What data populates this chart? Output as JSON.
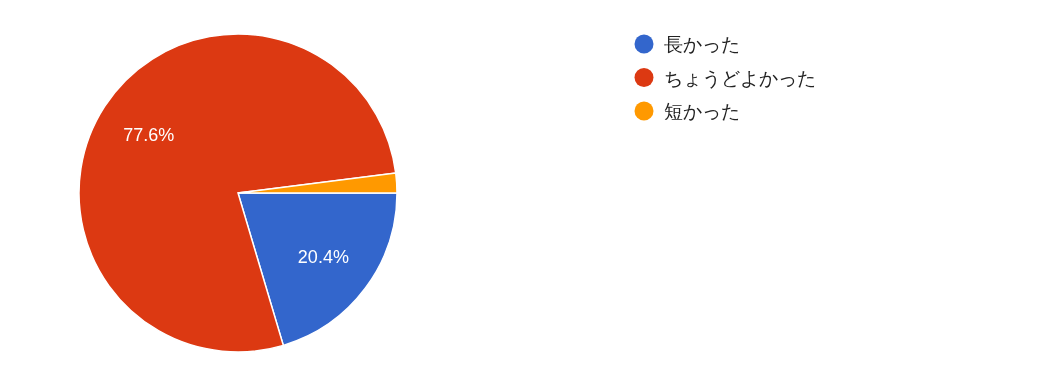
{
  "chart_data": {
    "type": "pie",
    "categories": [
      "長かった",
      "ちょうどよかった",
      "短かった"
    ],
    "values": [
      20.4,
      77.6,
      2.0
    ],
    "colors": [
      "#3366cc",
      "#dc3912",
      "#ff9900"
    ],
    "value_labels": [
      "20.4%",
      "77.6%",
      null
    ],
    "legend": "top right"
  }
}
